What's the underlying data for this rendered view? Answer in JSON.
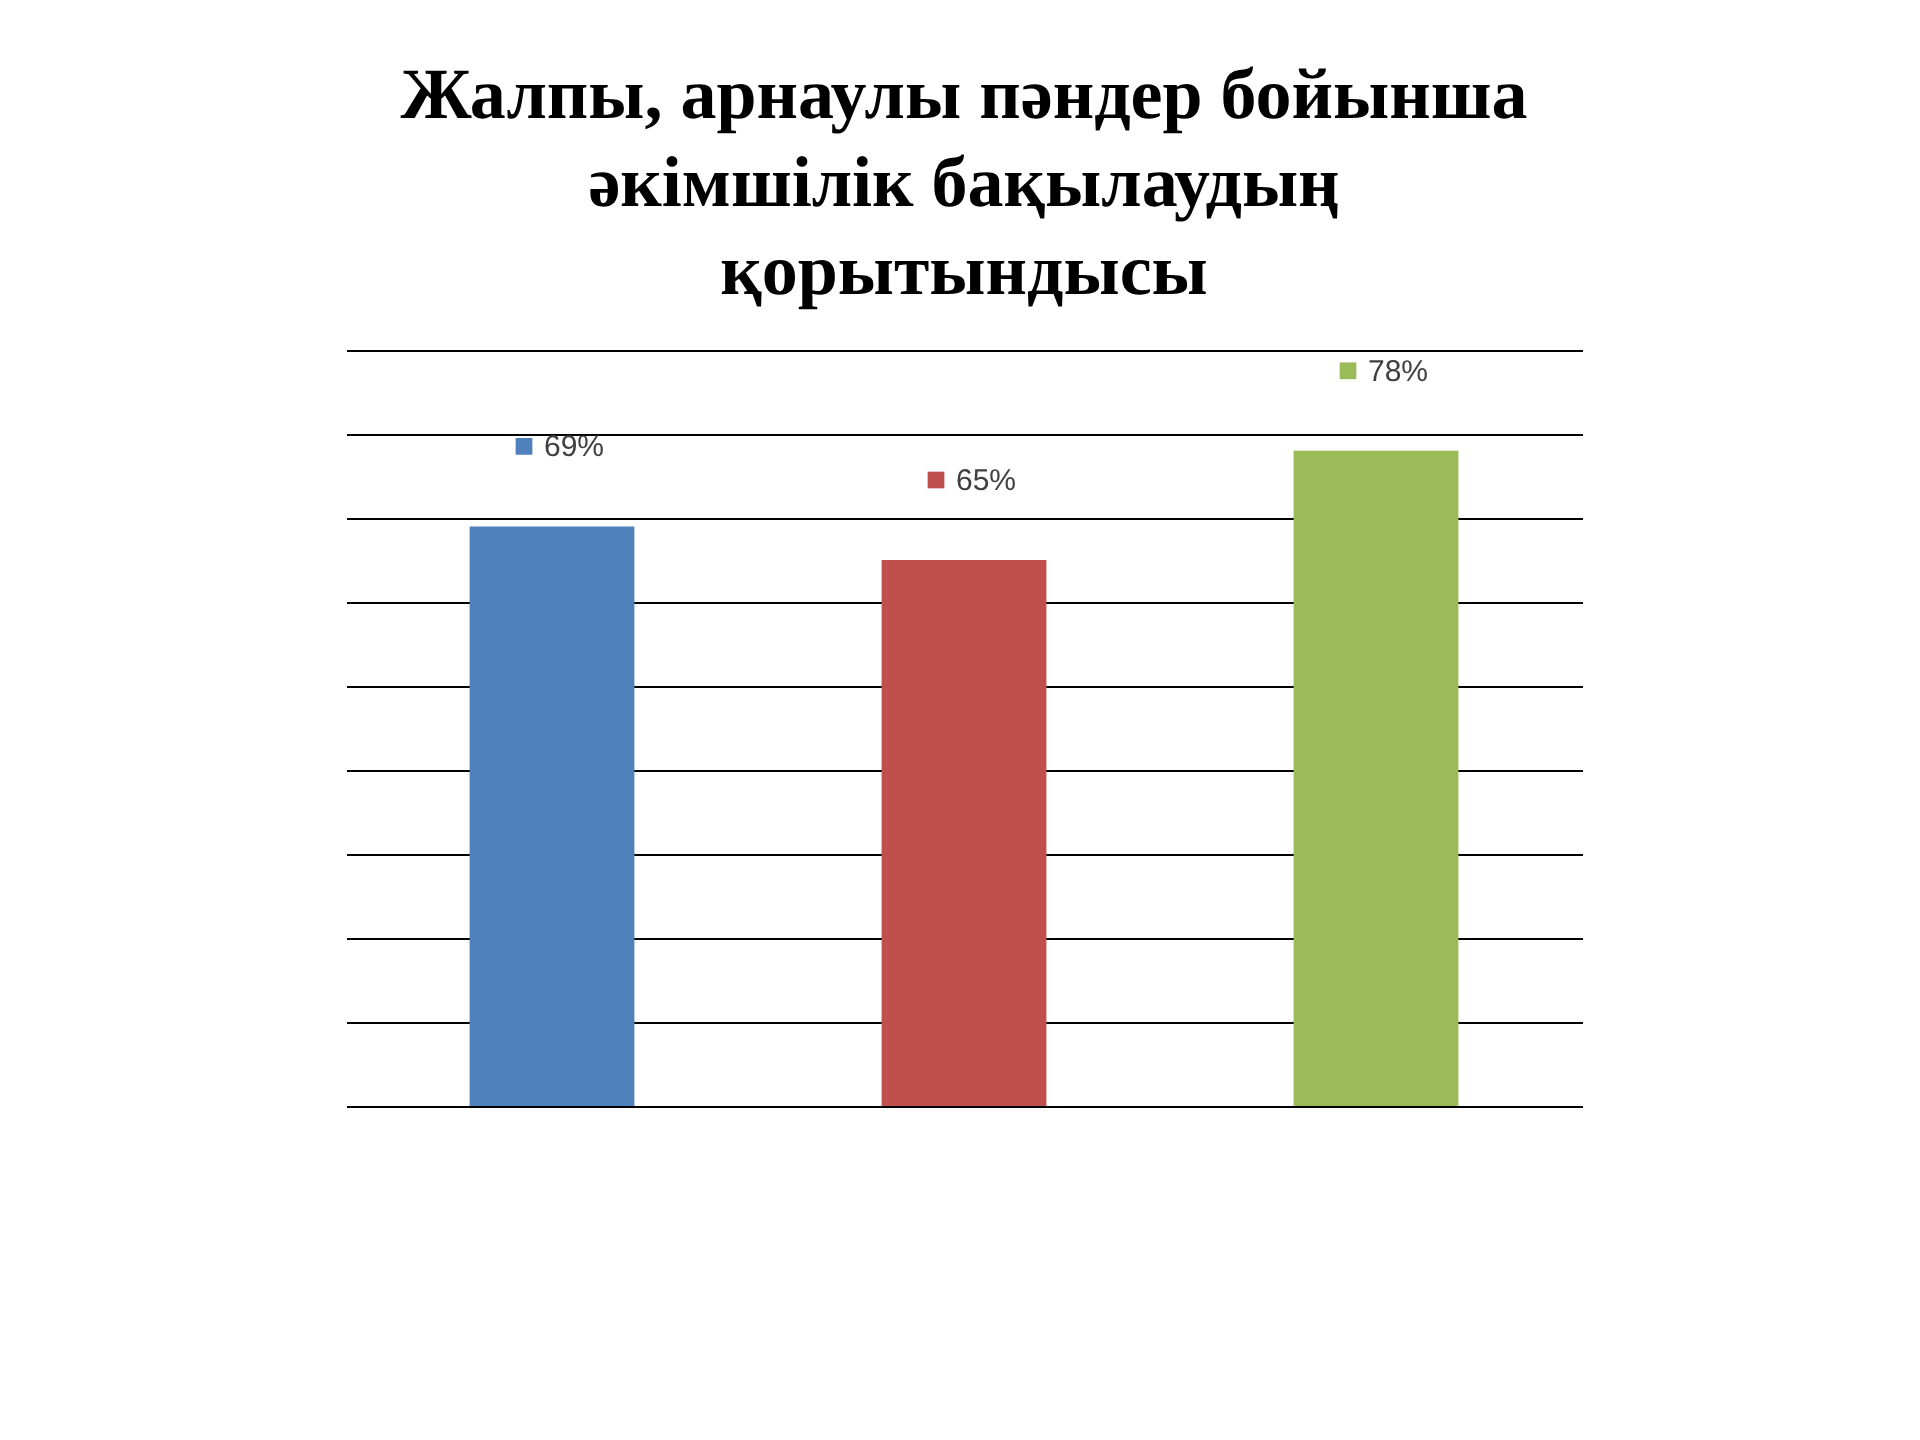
{
  "chart_data": {
    "type": "bar",
    "title": "Жалпы, арнаулы пәндер бойынша\nәкімшілік бақылаудың\nқорытындысы",
    "categories": [
      null,
      null,
      null
    ],
    "values": [
      69,
      65,
      78
    ],
    "colors": [
      "#4f81bd",
      "#c0504d",
      "#9bbb59"
    ],
    "value_labels": [
      "69%",
      "65%",
      "78%"
    ],
    "ylim": [
      0,
      90
    ],
    "yticks": [
      {
        "value": 0,
        "label": null
      },
      {
        "value": 10,
        "label": null
      },
      {
        "value": 20,
        "label": null
      },
      {
        "value": 30,
        "label": null
      },
      {
        "value": 40,
        "label": null
      },
      {
        "value": 50,
        "label": null
      },
      {
        "value": 60,
        "label": null
      },
      {
        "value": 70,
        "label": null
      },
      {
        "value": 80,
        "label": null
      },
      {
        "value": 90,
        "label": null
      }
    ],
    "grid": "y",
    "tick_labels": false
  }
}
